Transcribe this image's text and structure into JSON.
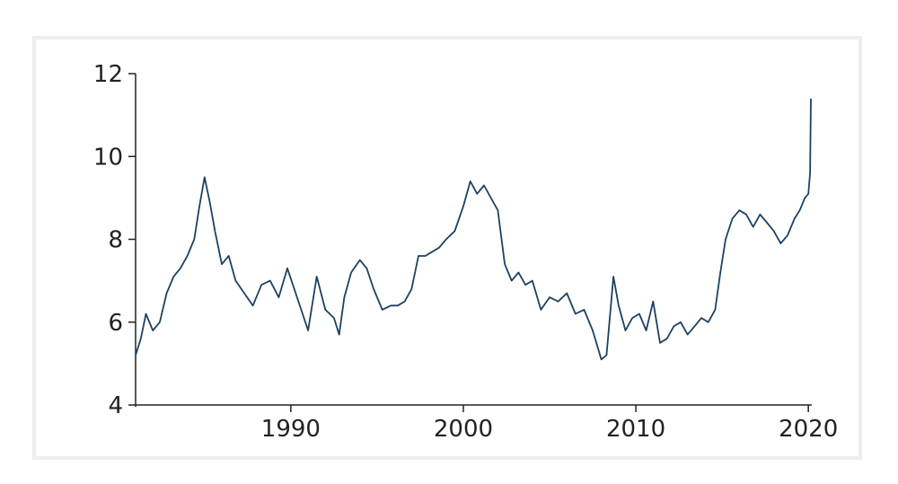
{
  "chart_data": {
    "type": "line",
    "title": "",
    "xlabel": "",
    "ylabel": "",
    "xlim": [
      1981.0,
      2020.2
    ],
    "ylim": [
      4,
      12
    ],
    "x_ticks": [
      1990,
      2000,
      2010,
      2020
    ],
    "y_ticks": [
      4,
      6,
      8,
      10,
      12
    ],
    "grid": false,
    "legend": "none",
    "line_color": "#1d4163",
    "series": [
      {
        "x": [
          1981.0,
          1981.3,
          1981.6,
          1982.0,
          1982.4,
          1982.8,
          1983.2,
          1983.6,
          1984.0,
          1984.4,
          1984.7,
          1985.0,
          1985.3,
          1985.6,
          1986.0,
          1986.4,
          1986.8,
          1987.3,
          1987.8,
          1988.3,
          1988.8,
          1989.3,
          1989.8,
          1990.2,
          1990.6,
          1991.0,
          1991.5,
          1992.0,
          1992.5,
          1992.8,
          1993.1,
          1993.5,
          1994.0,
          1994.4,
          1994.8,
          1995.3,
          1995.8,
          1996.2,
          1996.6,
          1997.0,
          1997.4,
          1997.8,
          1998.2,
          1998.6,
          1999.0,
          1999.5,
          2000.0,
          2000.4,
          2000.8,
          2001.2,
          2001.6,
          2002.0,
          2002.4,
          2002.8,
          2003.2,
          2003.6,
          2004.0,
          2004.5,
          2005.0,
          2005.5,
          2006.0,
          2006.5,
          2007.0,
          2007.5,
          2008.0,
          2008.3,
          2008.7,
          2009.0,
          2009.4,
          2009.8,
          2010.2,
          2010.6,
          2011.0,
          2011.4,
          2011.8,
          2012.2,
          2012.6,
          2013.0,
          2013.4,
          2013.8,
          2014.2,
          2014.6,
          2014.9,
          2015.2,
          2015.6,
          2016.0,
          2016.4,
          2016.8,
          2017.2,
          2017.6,
          2018.0,
          2018.4,
          2018.8,
          2019.2,
          2019.5,
          2019.8,
          2020.0,
          2020.1,
          2020.15
        ],
        "values": [
          5.2,
          5.6,
          6.2,
          5.8,
          6.0,
          6.7,
          7.1,
          7.3,
          7.6,
          8.0,
          8.8,
          9.5,
          8.9,
          8.2,
          7.4,
          7.6,
          7.0,
          6.7,
          6.4,
          6.9,
          7.0,
          6.6,
          7.3,
          6.8,
          6.3,
          5.8,
          7.1,
          6.3,
          6.1,
          5.7,
          6.6,
          7.2,
          7.5,
          7.3,
          6.8,
          6.3,
          6.4,
          6.4,
          6.5,
          6.8,
          7.6,
          7.6,
          7.7,
          7.8,
          8.0,
          8.2,
          8.8,
          9.4,
          9.1,
          9.3,
          9.0,
          8.7,
          7.4,
          7.0,
          7.2,
          6.9,
          7.0,
          6.3,
          6.6,
          6.5,
          6.7,
          6.2,
          6.3,
          5.8,
          5.1,
          5.2,
          7.1,
          6.4,
          5.8,
          6.1,
          6.2,
          5.8,
          6.5,
          5.5,
          5.6,
          5.9,
          6.0,
          5.7,
          5.9,
          6.1,
          6.0,
          6.3,
          7.2,
          8.0,
          8.5,
          8.7,
          8.6,
          8.3,
          8.6,
          8.4,
          8.2,
          7.9,
          8.1,
          8.5,
          8.7,
          9.0,
          9.1,
          9.6,
          11.4
        ]
      }
    ]
  }
}
